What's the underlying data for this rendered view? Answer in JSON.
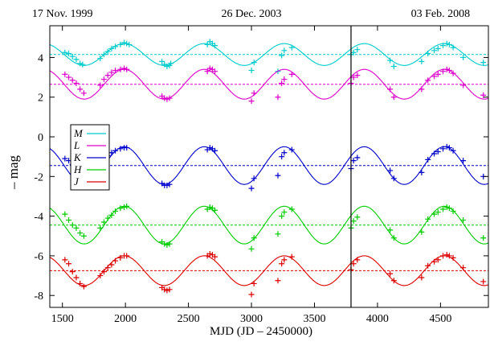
{
  "chart_data": {
    "type": "line",
    "xlabel": "MJD (JD – 2450000)",
    "ylabel": "– mag",
    "xlim": [
      1400,
      4880
    ],
    "ylim": [
      -8.6,
      5.6
    ],
    "xticks": [
      1500,
      2000,
      2500,
      3000,
      3500,
      4000,
      4500
    ],
    "yticks": [
      -8,
      -6,
      -4,
      -2,
      0,
      2,
      4
    ],
    "top_dates": [
      {
        "x": 1500,
        "label": "17 Nov. 1999"
      },
      {
        "x": 3000,
        "label": "26 Dec. 2003"
      },
      {
        "x": 4500,
        "label": "03 Feb. 2008"
      }
    ],
    "vline_x": 3790,
    "period": 635,
    "phase_ref": 1990,
    "legend_location": "upper-left",
    "grid": false,
    "series": [
      {
        "name": "M",
        "color": "#00cccc",
        "mean": 4.15,
        "amplitude": 0.55,
        "points": [
          [
            1520,
            4.25
          ],
          [
            1550,
            4.2
          ],
          [
            1580,
            4.05
          ],
          [
            1610,
            3.9
          ],
          [
            1640,
            3.7
          ],
          [
            1660,
            3.65
          ],
          [
            1800,
            3.95
          ],
          [
            1830,
            4.15
          ],
          [
            1860,
            4.3
          ],
          [
            1890,
            4.45
          ],
          [
            1920,
            4.55
          ],
          [
            1960,
            4.65
          ],
          [
            1990,
            4.75
          ],
          [
            2010,
            4.7
          ],
          [
            2030,
            4.65
          ],
          [
            2290,
            3.8
          ],
          [
            2310,
            3.65
          ],
          [
            2330,
            3.55
          ],
          [
            2350,
            3.6
          ],
          [
            2360,
            3.7
          ],
          [
            2650,
            4.65
          ],
          [
            2670,
            4.8
          ],
          [
            2690,
            4.7
          ],
          [
            2710,
            4.6
          ],
          [
            3000,
            3.35
          ],
          [
            3020,
            3.75
          ],
          [
            3210,
            3.3
          ],
          [
            3240,
            4.1
          ],
          [
            3260,
            4.35
          ],
          [
            3320,
            4.5
          ],
          [
            3790,
            4.15
          ],
          [
            3810,
            4.25
          ],
          [
            3840,
            4.4
          ],
          [
            4100,
            3.85
          ],
          [
            4130,
            3.55
          ],
          [
            4350,
            3.8
          ],
          [
            4400,
            4.2
          ],
          [
            4450,
            4.35
          ],
          [
            4480,
            4.45
          ],
          [
            4520,
            4.6
          ],
          [
            4550,
            4.7
          ],
          [
            4570,
            4.65
          ],
          [
            4600,
            4.5
          ],
          [
            4680,
            4.0
          ],
          [
            4840,
            3.75
          ]
        ]
      },
      {
        "name": "L",
        "color": "#dd00cc",
        "mean": 2.65,
        "amplitude": 0.75,
        "points": [
          [
            1520,
            3.15
          ],
          [
            1550,
            3.0
          ],
          [
            1580,
            2.85
          ],
          [
            1610,
            2.7
          ],
          [
            1640,
            2.4
          ],
          [
            1670,
            2.2
          ],
          [
            1800,
            2.6
          ],
          [
            1830,
            2.9
          ],
          [
            1860,
            3.1
          ],
          [
            1890,
            3.25
          ],
          [
            1920,
            3.35
          ],
          [
            1960,
            3.4
          ],
          [
            1990,
            3.45
          ],
          [
            2010,
            3.4
          ],
          [
            2290,
            2.05
          ],
          [
            2310,
            1.95
          ],
          [
            2330,
            1.9
          ],
          [
            2350,
            1.95
          ],
          [
            2650,
            3.3
          ],
          [
            2670,
            3.45
          ],
          [
            2690,
            3.4
          ],
          [
            2710,
            3.3
          ],
          [
            3000,
            1.8
          ],
          [
            3020,
            2.2
          ],
          [
            3210,
            2.0
          ],
          [
            3240,
            2.7
          ],
          [
            3260,
            2.9
          ],
          [
            3320,
            3.15
          ],
          [
            3790,
            2.7
          ],
          [
            3810,
            3.0
          ],
          [
            3840,
            3.1
          ],
          [
            4100,
            2.4
          ],
          [
            4130,
            2.0
          ],
          [
            4350,
            2.4
          ],
          [
            4400,
            2.85
          ],
          [
            4450,
            3.05
          ],
          [
            4480,
            3.15
          ],
          [
            4520,
            3.3
          ],
          [
            4550,
            3.4
          ],
          [
            4570,
            3.35
          ],
          [
            4600,
            3.2
          ],
          [
            4680,
            2.6
          ],
          [
            4840,
            2.1
          ]
        ]
      },
      {
        "name": "K",
        "color": "#0000cc",
        "mean": -1.45,
        "amplitude": 0.95,
        "points": [
          [
            1520,
            -1.1
          ],
          [
            1550,
            -1.2
          ],
          [
            1580,
            -1.4
          ],
          [
            1610,
            -1.6
          ],
          [
            1640,
            -1.85
          ],
          [
            1670,
            -2.05
          ],
          [
            1800,
            -1.6
          ],
          [
            1830,
            -1.2
          ],
          [
            1860,
            -0.95
          ],
          [
            1890,
            -0.8
          ],
          [
            1920,
            -0.7
          ],
          [
            1960,
            -0.6
          ],
          [
            1990,
            -0.55
          ],
          [
            2010,
            -0.55
          ],
          [
            2290,
            -2.35
          ],
          [
            2310,
            -2.45
          ],
          [
            2330,
            -2.45
          ],
          [
            2350,
            -2.4
          ],
          [
            2650,
            -0.65
          ],
          [
            2670,
            -0.55
          ],
          [
            2690,
            -0.6
          ],
          [
            2710,
            -0.7
          ],
          [
            3000,
            -2.6
          ],
          [
            3020,
            -2.1
          ],
          [
            3210,
            -1.95
          ],
          [
            3240,
            -1.0
          ],
          [
            3260,
            -0.8
          ],
          [
            3320,
            -0.65
          ],
          [
            3790,
            -1.6
          ],
          [
            3810,
            -1.2
          ],
          [
            3840,
            -1.05
          ],
          [
            4100,
            -1.7
          ],
          [
            4130,
            -2.1
          ],
          [
            4350,
            -1.8
          ],
          [
            4400,
            -1.15
          ],
          [
            4450,
            -0.85
          ],
          [
            4480,
            -0.75
          ],
          [
            4520,
            -0.6
          ],
          [
            4550,
            -0.5
          ],
          [
            4570,
            -0.55
          ],
          [
            4600,
            -0.7
          ],
          [
            4680,
            -1.2
          ],
          [
            4840,
            -2.0
          ]
        ]
      },
      {
        "name": "H",
        "color": "#00cc00",
        "mean": -4.45,
        "amplitude": 0.95,
        "points": [
          [
            1520,
            -3.9
          ],
          [
            1550,
            -4.2
          ],
          [
            1580,
            -4.45
          ],
          [
            1610,
            -4.6
          ],
          [
            1640,
            -4.85
          ],
          [
            1670,
            -5.0
          ],
          [
            1800,
            -4.6
          ],
          [
            1830,
            -4.3
          ],
          [
            1860,
            -4.1
          ],
          [
            1890,
            -3.95
          ],
          [
            1920,
            -3.75
          ],
          [
            1960,
            -3.6
          ],
          [
            1990,
            -3.55
          ],
          [
            2010,
            -3.5
          ],
          [
            2290,
            -5.3
          ],
          [
            2310,
            -5.4
          ],
          [
            2330,
            -5.45
          ],
          [
            2350,
            -5.4
          ],
          [
            2650,
            -3.65
          ],
          [
            2670,
            -3.55
          ],
          [
            2690,
            -3.6
          ],
          [
            2710,
            -3.7
          ],
          [
            3000,
            -5.65
          ],
          [
            3020,
            -5.1
          ],
          [
            3210,
            -4.9
          ],
          [
            3240,
            -4.0
          ],
          [
            3260,
            -3.8
          ],
          [
            3320,
            -3.65
          ],
          [
            3790,
            -4.6
          ],
          [
            3810,
            -4.25
          ],
          [
            3840,
            -4.05
          ],
          [
            4100,
            -4.7
          ],
          [
            4130,
            -5.1
          ],
          [
            4350,
            -4.8
          ],
          [
            4400,
            -4.15
          ],
          [
            4450,
            -3.9
          ],
          [
            4480,
            -3.8
          ],
          [
            4520,
            -3.65
          ],
          [
            4550,
            -3.55
          ],
          [
            4570,
            -3.6
          ],
          [
            4600,
            -3.75
          ],
          [
            4680,
            -4.2
          ],
          [
            4840,
            -5.1
          ]
        ]
      },
      {
        "name": "J",
        "color": "#dd0000",
        "mean": -6.75,
        "amplitude": 0.75,
        "points": [
          [
            1520,
            -6.2
          ],
          [
            1550,
            -6.4
          ],
          [
            1580,
            -6.8
          ],
          [
            1610,
            -7.1
          ],
          [
            1640,
            -7.4
          ],
          [
            1670,
            -7.55
          ],
          [
            1800,
            -7.0
          ],
          [
            1830,
            -6.8
          ],
          [
            1860,
            -6.6
          ],
          [
            1890,
            -6.45
          ],
          [
            1920,
            -6.25
          ],
          [
            1960,
            -6.1
          ],
          [
            1990,
            -6.0
          ],
          [
            2010,
            -6.0
          ],
          [
            2290,
            -7.6
          ],
          [
            2310,
            -7.7
          ],
          [
            2330,
            -7.75
          ],
          [
            2350,
            -7.7
          ],
          [
            2650,
            -6.0
          ],
          [
            2670,
            -5.9
          ],
          [
            2690,
            -5.95
          ],
          [
            2710,
            -6.05
          ],
          [
            3000,
            -7.95
          ],
          [
            3020,
            -7.4
          ],
          [
            3210,
            -7.25
          ],
          [
            3240,
            -6.4
          ],
          [
            3260,
            -6.2
          ],
          [
            3320,
            -6.05
          ],
          [
            3790,
            -6.7
          ],
          [
            3810,
            -6.4
          ],
          [
            3840,
            -6.2
          ],
          [
            4100,
            -6.9
          ],
          [
            4130,
            -7.25
          ],
          [
            4350,
            -7.1
          ],
          [
            4400,
            -6.5
          ],
          [
            4450,
            -6.3
          ],
          [
            4480,
            -6.2
          ],
          [
            4520,
            -6.0
          ],
          [
            4550,
            -5.95
          ],
          [
            4570,
            -6.0
          ],
          [
            4600,
            -6.1
          ],
          [
            4680,
            -6.6
          ],
          [
            4840,
            -7.3
          ]
        ]
      }
    ]
  }
}
